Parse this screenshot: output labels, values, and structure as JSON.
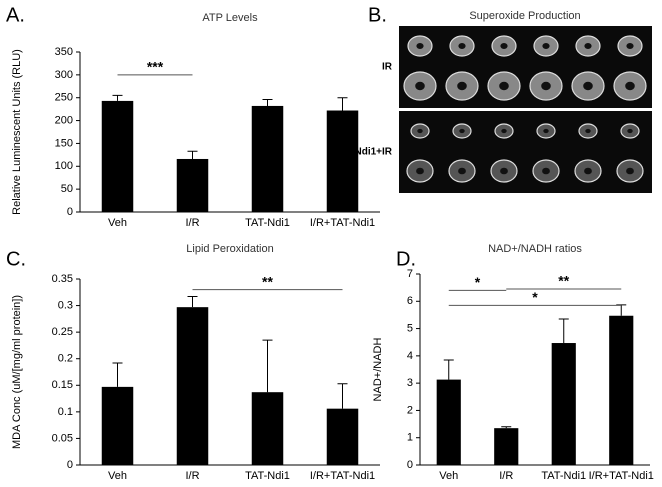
{
  "chart_data": [
    {
      "panel": "A.",
      "type": "bar",
      "title": "ATP Levels",
      "ylabel": "Relative Luminescent Units (RLU)",
      "categories": [
        "Veh",
        "I/R",
        "TAT-Ndi1",
        "I/R+TAT-Ndi1"
      ],
      "values": [
        243,
        116,
        232,
        222
      ],
      "errors": [
        12,
        17,
        14,
        28
      ],
      "color": "#000000",
      "ylim": [
        0,
        350
      ],
      "yticks": [
        0,
        50,
        100,
        150,
        200,
        250,
        300,
        350
      ],
      "annotations": [
        {
          "label": "***",
          "between": [
            0,
            1
          ],
          "y": 300
        }
      ]
    },
    {
      "panel": "C.",
      "type": "bar",
      "title": "Lipid Peroxidation",
      "ylabel": "MDA Conc (uM/[mg/ml protein])",
      "categories": [
        "Veh",
        "I/R",
        "TAT-Ndi1",
        "I/R+TAT-Ndi1"
      ],
      "values": [
        0.147,
        0.297,
        0.137,
        0.106
      ],
      "errors": [
        0.045,
        0.02,
        0.098,
        0.047
      ],
      "color": "#000000",
      "ylim": [
        0,
        0.35
      ],
      "yticks": [
        0,
        0.05,
        0.1,
        0.15,
        0.2,
        0.25,
        0.3,
        0.35
      ],
      "annotations": [
        {
          "label": "**",
          "between": [
            1,
            3
          ],
          "y": 0.33
        }
      ]
    },
    {
      "panel": "D.",
      "type": "bar",
      "title": "NAD+/NADH ratios",
      "ylabel": "NAD+/NADH",
      "categories": [
        "Veh",
        "I/R",
        "TAT-Ndi1",
        "I/R+TAT-Ndi1"
      ],
      "values": [
        3.13,
        1.35,
        4.47,
        5.47
      ],
      "errors": [
        0.72,
        0.05,
        0.88,
        0.4
      ],
      "color": "#000000",
      "ylim": [
        0,
        7
      ],
      "yticks": [
        0,
        1,
        2,
        3,
        4,
        5,
        6,
        7
      ],
      "annotations": [
        {
          "label": "*",
          "between": [
            0,
            1
          ],
          "y": 6.4
        },
        {
          "label": "**",
          "between": [
            1,
            3
          ],
          "y": 6.45
        },
        {
          "label": "*",
          "between": [
            0,
            3
          ],
          "y": 5.85
        }
      ]
    }
  ],
  "image_panel": {
    "panel": "B.",
    "title": "Superoxide Production",
    "rows": [
      "IR",
      "Ndi1+IR"
    ]
  }
}
